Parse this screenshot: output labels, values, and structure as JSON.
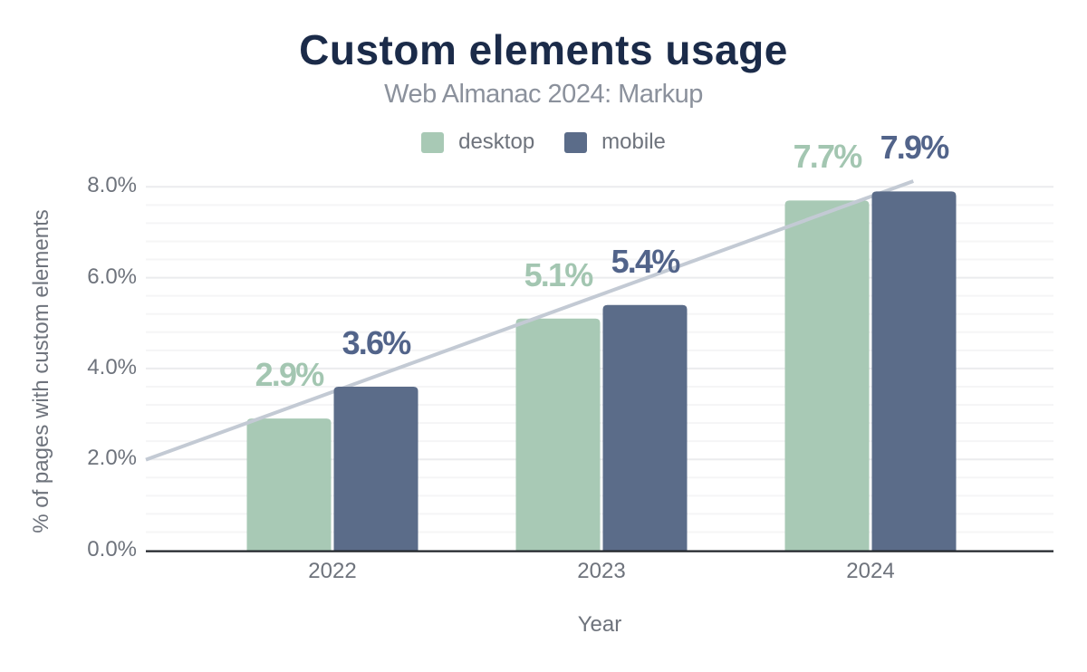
{
  "chart_data": {
    "type": "bar",
    "title": "Custom elements usage",
    "subtitle": "Web Almanac 2024: Markup",
    "xlabel": "Year",
    "ylabel": "% of pages with custom elements",
    "categories": [
      "2022",
      "2023",
      "2024"
    ],
    "series": [
      {
        "name": "desktop",
        "values": [
          2.9,
          5.1,
          7.7
        ],
        "labels": [
          "2.9%",
          "5.1%",
          "7.7%"
        ],
        "color": "#a8c9b5",
        "label_color": "#a3c6b1"
      },
      {
        "name": "mobile",
        "values": [
          3.6,
          5.4,
          7.9
        ],
        "labels": [
          "3.6%",
          "5.4%",
          "7.9%"
        ],
        "color": "#5b6c89",
        "label_color": "#52648a"
      }
    ],
    "y_ticks": {
      "labels": [
        "0.0%",
        "2.0%",
        "4.0%",
        "6.0%",
        "8.0%"
      ],
      "values": [
        0,
        2,
        4,
        6,
        8
      ]
    },
    "ylim": [
      0,
      8.125
    ],
    "minor_grid_step": 0.4,
    "trendline": {
      "fit_of_series": "mobile",
      "color": "#c3cad4"
    },
    "legend": {
      "position": "top",
      "entries": [
        "desktop",
        "mobile"
      ]
    },
    "grid": "horizontal",
    "colors": {
      "title": "#1b2b49",
      "subtitle": "#8b919c",
      "axis_text": "#6e737c",
      "axis_line": "#22262b",
      "grid_major": "#ebecee",
      "grid_minor": "#f5f5f6",
      "background": "#ffffff"
    }
  }
}
